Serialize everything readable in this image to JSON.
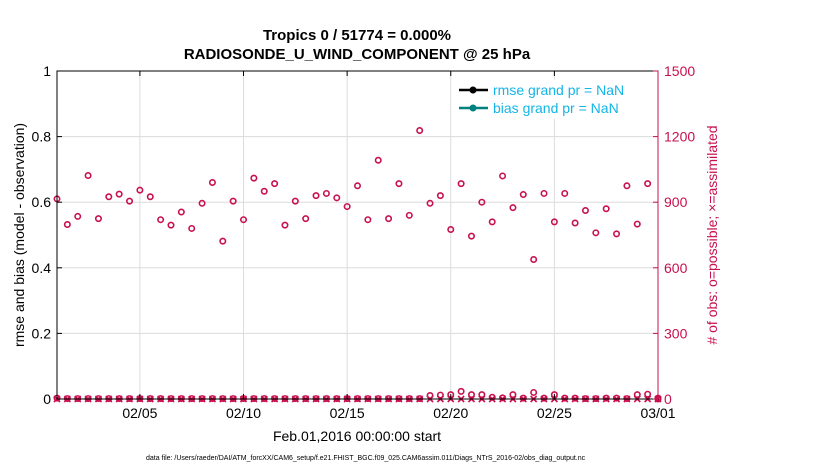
{
  "chart_data": {
    "type": "scatter",
    "title_line1": "Tropics 0 / 51774 = 0.000%",
    "title_line2": "RADIOSONDE_U_WIND_COMPONENT @ 25 hPa",
    "xlabel": "Feb.01,2016 00:00:00 start",
    "ylabel_left": "rmse and bias (model - observation)",
    "ylabel_right": "# of obs: o=possible; ×=assimilated",
    "footnote": "data file: /Users/raeder/DAI/ATM_forcXX/CAM6_setup/f.e21.FHIST_BGC.f09_025.CAM6assim.011/Diags_NTrS_2016-02/obs_diag_output.nc",
    "xlim": [
      0.5,
      29.5
    ],
    "ylim_left": [
      0,
      1
    ],
    "ylim_right": [
      0,
      1500
    ],
    "x_ticks": [
      {
        "x": 4.5,
        "label": "02/05"
      },
      {
        "x": 9.5,
        "label": "02/10"
      },
      {
        "x": 14.5,
        "label": "02/15"
      },
      {
        "x": 19.5,
        "label": "02/20"
      },
      {
        "x": 24.5,
        "label": "02/25"
      },
      {
        "x": 29.5,
        "label": "03/01"
      }
    ],
    "y_left_ticks": [
      {
        "v": 0,
        "label": "0"
      },
      {
        "v": 0.2,
        "label": "0.2"
      },
      {
        "v": 0.4,
        "label": "0.4"
      },
      {
        "v": 0.6,
        "label": "0.6"
      },
      {
        "v": 0.8,
        "label": "0.8"
      },
      {
        "v": 1,
        "label": "1"
      }
    ],
    "y_right_ticks": [
      {
        "v": 0,
        "label": "0"
      },
      {
        "v": 300,
        "label": "300"
      },
      {
        "v": 600,
        "label": "600"
      },
      {
        "v": 900,
        "label": "900"
      },
      {
        "v": 1200,
        "label": "1200"
      },
      {
        "v": 1500,
        "label": "1500"
      }
    ],
    "legend": [
      {
        "label": "rmse grand pr = NaN",
        "color": "#000000"
      },
      {
        "label": "bias grand pr = NaN",
        "color": "#00807f"
      }
    ],
    "colors": {
      "obs": "#c8104f",
      "legend_text": "#12b5e8",
      "grid": "#dcdcdc"
    },
    "series": [
      {
        "name": "obs possible (upper, o)",
        "x": [
          0.5,
          1.0,
          1.5,
          2.0,
          2.5,
          3.0,
          3.5,
          4.0,
          4.5,
          5.0,
          5.5,
          6.0,
          6.5,
          7.0,
          7.5,
          8.0,
          8.5,
          9.0,
          9.5,
          10.0,
          10.5,
          11.0,
          11.5,
          12.0,
          12.5,
          13.0,
          13.5,
          14.0,
          14.5,
          15.0,
          15.5,
          16.0,
          16.5,
          17.0,
          17.5,
          18.0,
          18.5,
          19.0,
          19.5,
          20.0,
          20.5,
          21.0,
          21.5,
          22.0,
          22.5,
          23.0,
          23.5,
          24.0,
          24.5,
          25.0,
          25.5,
          26.0,
          26.5,
          27.0,
          27.5,
          28.0,
          28.5,
          29.0,
          29.5
        ],
        "y": [
          915,
          798,
          835,
          1022,
          825,
          925,
          937,
          905,
          955,
          925,
          820,
          795,
          855,
          780,
          895,
          990,
          722,
          905,
          820,
          1010,
          950,
          985,
          795,
          905,
          825,
          930,
          940,
          920,
          880,
          975,
          820,
          1092,
          825,
          985,
          840,
          1228,
          895,
          930,
          775,
          985,
          745,
          900,
          810,
          1020,
          875,
          935,
          638,
          940,
          810,
          940,
          805,
          862,
          760,
          870,
          755,
          975,
          800,
          985,
          0
        ]
      },
      {
        "name": "obs possible (lower, o)",
        "x": [
          0.5,
          1.0,
          1.5,
          2.0,
          2.5,
          3.0,
          3.5,
          4.0,
          4.5,
          5.0,
          5.5,
          6.0,
          6.5,
          7.0,
          7.5,
          8.0,
          8.5,
          9.0,
          9.5,
          10.0,
          10.5,
          11.0,
          11.5,
          12.0,
          12.5,
          13.0,
          13.5,
          14.0,
          14.5,
          15.0,
          15.5,
          16.0,
          16.5,
          17.0,
          17.5,
          18.0,
          18.5,
          19.0,
          19.5,
          20.0,
          20.5,
          21.0,
          21.5,
          22.0,
          22.5,
          23.0,
          23.5,
          24.0,
          24.5,
          25.0,
          25.5,
          26.0,
          26.5,
          27.0,
          27.5,
          28.0,
          28.5,
          29.0,
          29.5
        ],
        "y": [
          4,
          2,
          2,
          2,
          2,
          2,
          2,
          2,
          2,
          2,
          2,
          2,
          2,
          2,
          2,
          2,
          2,
          2,
          2,
          2,
          2,
          2,
          2,
          2,
          2,
          2,
          2,
          2,
          2,
          2,
          2,
          2,
          2,
          2,
          2,
          2,
          16,
          18,
          20,
          35,
          20,
          20,
          8,
          5,
          20,
          4,
          30,
          4,
          20,
          4,
          4,
          2,
          2,
          4,
          4,
          2,
          20,
          22,
          4
        ]
      },
      {
        "name": "obs assimilated (×)",
        "x": [
          0.5,
          1.0,
          1.5,
          2.0,
          2.5,
          3.0,
          3.5,
          4.0,
          4.5,
          5.0,
          5.5,
          6.0,
          6.5,
          7.0,
          7.5,
          8.0,
          8.5,
          9.0,
          9.5,
          10.0,
          10.5,
          11.0,
          11.5,
          12.0,
          12.5,
          13.0,
          13.5,
          14.0,
          14.5,
          15.0,
          15.5,
          16.0,
          16.5,
          17.0,
          17.5,
          18.0,
          18.5,
          19.0,
          19.5,
          20.0,
          20.5,
          21.0,
          21.5,
          22.0,
          22.5,
          23.0,
          23.5,
          24.0,
          24.5,
          25.0,
          25.5,
          26.0,
          26.5,
          27.0,
          27.5,
          28.0,
          28.5,
          29.0,
          29.5
        ],
        "y": [
          0,
          0,
          0,
          0,
          0,
          0,
          0,
          0,
          0,
          0,
          0,
          0,
          0,
          0,
          0,
          0,
          0,
          0,
          0,
          0,
          0,
          0,
          0,
          0,
          0,
          0,
          0,
          0,
          0,
          0,
          0,
          0,
          0,
          0,
          0,
          0,
          0,
          0,
          0,
          0,
          0,
          0,
          0,
          0,
          0,
          0,
          0,
          0,
          0,
          0,
          0,
          0,
          0,
          0,
          0,
          0,
          0,
          0,
          0
        ]
      }
    ]
  }
}
